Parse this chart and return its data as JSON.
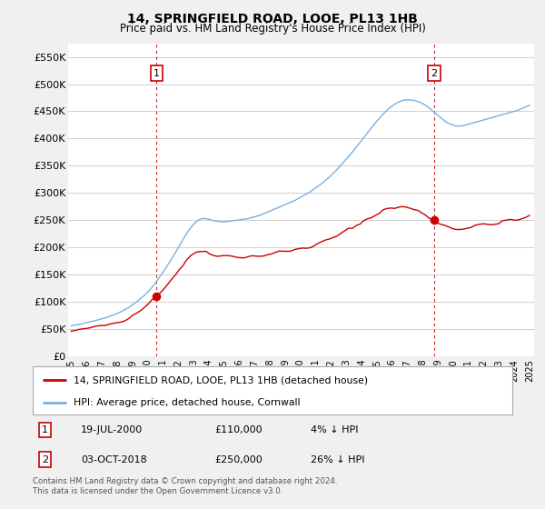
{
  "title": "14, SPRINGFIELD ROAD, LOOE, PL13 1HB",
  "subtitle": "Price paid vs. HM Land Registry's House Price Index (HPI)",
  "ylim": [
    0,
    575000
  ],
  "yticks": [
    0,
    50000,
    100000,
    150000,
    200000,
    250000,
    300000,
    350000,
    400000,
    450000,
    500000,
    550000
  ],
  "ytick_labels": [
    "£0",
    "£50K",
    "£100K",
    "£150K",
    "£200K",
    "£250K",
    "£300K",
    "£350K",
    "£400K",
    "£450K",
    "£500K",
    "£550K"
  ],
  "sale1_date_idx": 5.58,
  "sale1_price": 110000,
  "sale1_label": "1",
  "sale1_date_str": "19-JUL-2000",
  "sale1_price_str": "£110,000",
  "sale1_hpi_str": "4% ↓ HPI",
  "sale2_date_idx": 23.75,
  "sale2_price": 250000,
  "sale2_label": "2",
  "sale2_date_str": "03-OCT-2018",
  "sale2_price_str": "£250,000",
  "sale2_hpi_str": "26% ↓ HPI",
  "hpi_color": "#7ab0e0",
  "price_color": "#cc0000",
  "vline_color": "#cc0000",
  "background_color": "#f0f0f0",
  "plot_bg_color": "#ffffff",
  "grid_color": "#d0d0d0",
  "legend_label_price": "14, SPRINGFIELD ROAD, LOOE, PL13 1HB (detached house)",
  "legend_label_hpi": "HPI: Average price, detached house, Cornwall",
  "footer": "Contains HM Land Registry data © Crown copyright and database right 2024.\nThis data is licensed under the Open Government Licence v3.0.",
  "hpi_data": [
    56000,
    57500,
    58500,
    60000,
    62000,
    63500,
    65000,
    67000,
    69000,
    71000,
    73500,
    76000,
    79000,
    82000,
    86000,
    90000,
    95000,
    100000,
    106000,
    112000,
    119000,
    127000,
    136000,
    146000,
    156000,
    167000,
    178000,
    190000,
    202000,
    214000,
    226000,
    236000,
    244000,
    250000,
    253000,
    253000,
    251000,
    249000,
    248000,
    247000,
    247000,
    248000,
    249000,
    250000,
    251000,
    252000,
    253000,
    255000,
    257000,
    259000,
    262000,
    265000,
    268000,
    271000,
    274000,
    277000,
    280000,
    283000,
    286000,
    290000,
    294000,
    298000,
    302000,
    307000,
    312000,
    317000,
    323000,
    329000,
    336000,
    343000,
    351000,
    359000,
    367000,
    375000,
    384000,
    393000,
    402000,
    411000,
    420000,
    429000,
    437000,
    445000,
    452000,
    458000,
    463000,
    467000,
    470000,
    471000,
    471000,
    470000,
    468000,
    465000,
    461000,
    456000,
    450000,
    444000,
    438000,
    432000,
    428000,
    425000,
    423000,
    423000,
    424000,
    426000,
    428000,
    430000,
    432000,
    434000,
    436000,
    438000,
    440000,
    442000,
    444000,
    446000,
    448000,
    450000,
    452000,
    455000,
    458000,
    461000
  ],
  "price_noise_seed": 42,
  "x_year_labels": [
    "1995",
    "1996",
    "1997",
    "1998",
    "1999",
    "2000",
    "2001",
    "2002",
    "2003",
    "2004",
    "2005",
    "2006",
    "2007",
    "2008",
    "2009",
    "2010",
    "2011",
    "2012",
    "2013",
    "2014",
    "2015",
    "2016",
    "2017",
    "2018",
    "2019",
    "2020",
    "2021",
    "2022",
    "2023",
    "2024",
    "2025"
  ]
}
